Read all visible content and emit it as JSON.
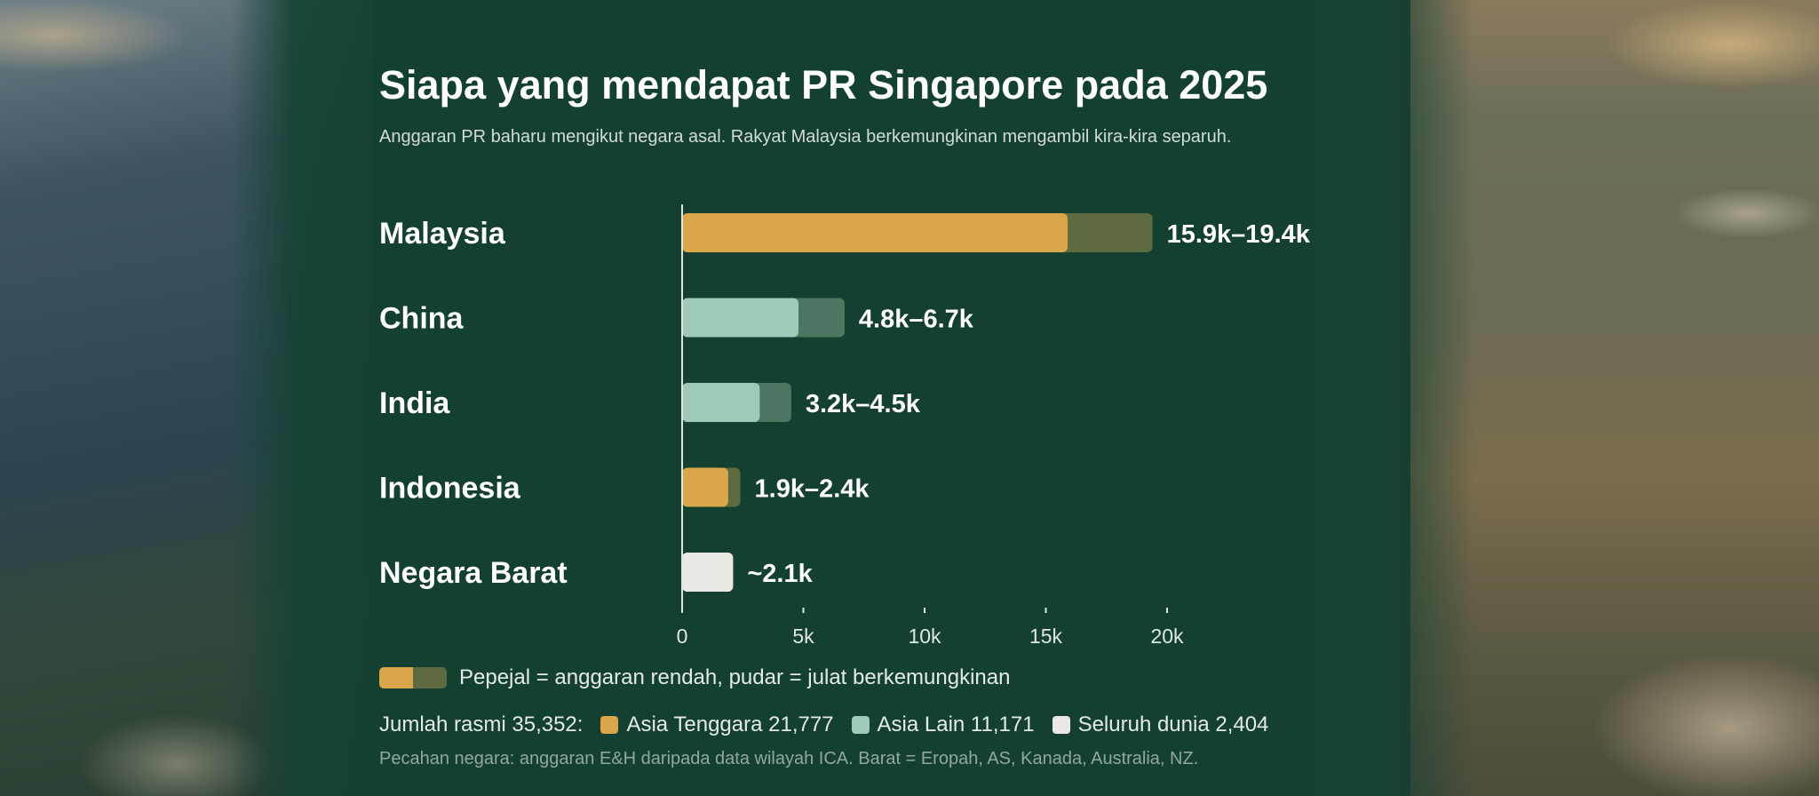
{
  "header": {
    "title": "Siapa yang mendapat PR Singapore pada 2025",
    "subtitle": "Anggaran PR baharu mengikut negara asal. Rakyat Malaysia berkemungkinan mengambil kira-kira separuh."
  },
  "chart_data": {
    "type": "bar",
    "orientation": "horizontal",
    "title": "Siapa yang mendapat PR Singapore pada 2025",
    "subtitle": "Anggaran PR baharu mengikut negara asal. Rakyat Malaysia berkemungkinan mengambil kira-kira separuh.",
    "categories": [
      "Malaysia",
      "China",
      "India",
      "Indonesia",
      "Negara Barat"
    ],
    "series": [
      {
        "name": "Pepejal = anggaran rendah",
        "values": [
          15900,
          4800,
          3200,
          1900,
          2100
        ]
      },
      {
        "name": "pudar = julat berkemungkinan",
        "values": [
          19400,
          6700,
          4500,
          2400,
          2100
        ]
      }
    ],
    "value_labels": [
      "15.9k–19.4k",
      "4.8k–6.7k",
      "3.2k–4.5k",
      "1.9k–2.4k",
      "~2.1k"
    ],
    "bar_colors": [
      {
        "solid": "#d9a74a",
        "faded": "#5e6b40"
      },
      {
        "solid": "#9fcab8",
        "faded": "#4c7662"
      },
      {
        "solid": "#9fcab8",
        "faded": "#4c7662"
      },
      {
        "solid": "#d9a74a",
        "faded": "#5e6b40"
      },
      {
        "solid": "#e9e8e2",
        "faded": "#e9e8e2"
      }
    ],
    "xlim": [
      0,
      20000
    ],
    "xticks": [
      0,
      5000,
      10000,
      15000,
      20000
    ],
    "xtick_labels": [
      "0",
      "5k",
      "10k",
      "15k",
      "20k"
    ],
    "grid": false,
    "legend": "bottom-left"
  },
  "legend": {
    "text": "Pepejal = anggaran rendah, pudar = julat berkemungkinan"
  },
  "totals": {
    "prefix": "Jumlah rasmi 35,352:",
    "items": [
      {
        "label": "Asia Tenggara 21,777",
        "color": "#d9a74a"
      },
      {
        "label": "Asia Lain 11,171",
        "color": "#9fcab8"
      },
      {
        "label": "Seluruh dunia 2,404",
        "color": "#e9e8e2"
      }
    ]
  },
  "footnote": "Pecahan negara: anggaran E&H daripada data wilayah ICA. Barat = Eropah, AS, Kanada, Australia, NZ."
}
